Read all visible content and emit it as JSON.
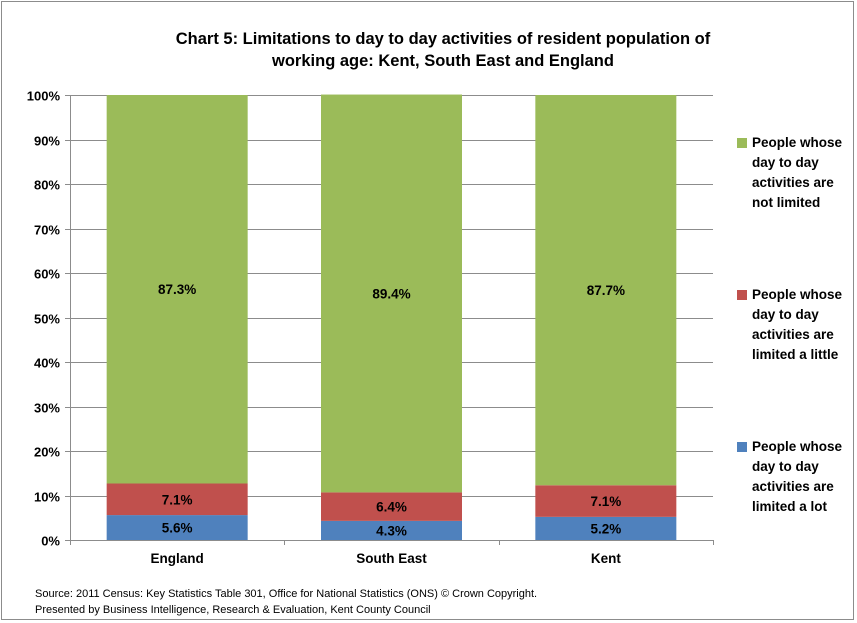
{
  "chart_data": {
    "type": "bar",
    "stacked": true,
    "percent_stacked": true,
    "title": "Chart 5: Limitations to day to day activities of resident population of working age: Kent, South East and England",
    "title_lines": [
      "Chart 5: Limitations to day to day activities of resident population of",
      "working age: Kent, South East and England"
    ],
    "categories": [
      "England",
      "South East",
      "Kent"
    ],
    "series": [
      {
        "name": "People whose day to day activities are limited a lot",
        "name_lines": [
          "People whose",
          "day to day",
          "activities are",
          "limited a lot"
        ],
        "color": "#4f81bd",
        "values": [
          5.6,
          4.3,
          5.2
        ],
        "labels": [
          "5.6%",
          "4.3%",
          "5.2%"
        ]
      },
      {
        "name": "People whose day to day activities are limited a little",
        "name_lines": [
          "People whose",
          "day to day",
          "activities are",
          "limited a little"
        ],
        "color": "#c0504d",
        "values": [
          7.1,
          6.4,
          7.1
        ],
        "labels": [
          "7.1%",
          "6.4%",
          "7.1%"
        ]
      },
      {
        "name": "People whose day to day activities are not  limited",
        "name_lines": [
          "People whose",
          "day to day",
          "activities are",
          "not  limited"
        ],
        "color": "#9bbb59",
        "values": [
          87.3,
          89.4,
          87.7
        ],
        "labels": [
          "87.3%",
          "89.4%",
          "87.7%"
        ]
      }
    ],
    "ylim": [
      0,
      100
    ],
    "yticks": [
      "0%",
      "10%",
      "20%",
      "30%",
      "40%",
      "50%",
      "60%",
      "70%",
      "80%",
      "90%",
      "100%"
    ],
    "grid": true,
    "legend_position": "right"
  },
  "source_lines": [
    "Source: 2011 Census: Key Statistics Table 301, Office for National Statistics (ONS) © Crown Copyright.",
    "Presented by Business Intelligence, Research & Evaluation, Kent County Council"
  ],
  "colors": {
    "gridline": "#8c8c8c",
    "axis": "#8c8c8c",
    "border": "#8c8c8c"
  }
}
